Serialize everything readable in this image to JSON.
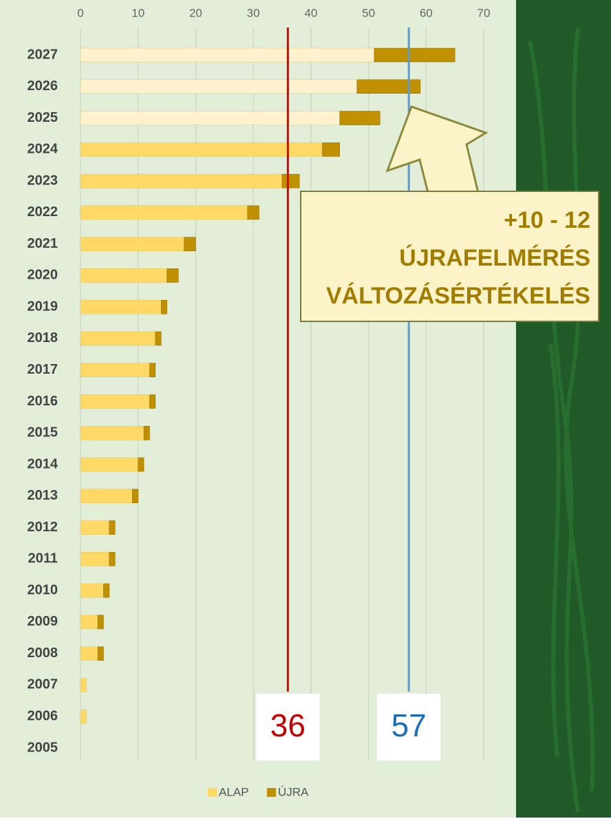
{
  "chart_data": {
    "type": "bar",
    "orientation": "horizontal",
    "stacked": true,
    "categories": [
      "2027",
      "2026",
      "2025",
      "2024",
      "2023",
      "2022",
      "2021",
      "2020",
      "2019",
      "2018",
      "2017",
      "2016",
      "2015",
      "2014",
      "2013",
      "2012",
      "2011",
      "2010",
      "2009",
      "2008",
      "2007",
      "2006",
      "2005"
    ],
    "series": [
      {
        "name": "ALAP",
        "color": "#ffd966",
        "point_colors": [
          "#fff2cc",
          "#fff2cc",
          "#fff2cc",
          "#ffd966",
          "#ffd966",
          "#ffd966",
          "#ffd966",
          "#ffd966",
          "#ffd966",
          "#ffd966",
          "#ffd966",
          "#ffd966",
          "#ffd966",
          "#ffd966",
          "#ffd966",
          "#ffd966",
          "#ffd966",
          "#ffd966",
          "#ffd966",
          "#ffd966",
          "#ffd966",
          "#ffd966",
          "#ffd966"
        ],
        "values": [
          51,
          48,
          45,
          42,
          35,
          29,
          18,
          15,
          14,
          13,
          12,
          12,
          11,
          10,
          9,
          5,
          5,
          4,
          3,
          3,
          1,
          1,
          0
        ]
      },
      {
        "name": "ÚJRA",
        "color": "#bf9000",
        "values": [
          14,
          11,
          7,
          3,
          3,
          2,
          2,
          2,
          1,
          1,
          1,
          1,
          1,
          1,
          1,
          1,
          1,
          1,
          1,
          1,
          0,
          0,
          0
        ]
      }
    ],
    "xlim": [
      0,
      70
    ],
    "xticks": [
      0,
      10,
      20,
      30,
      40,
      50,
      60,
      70
    ],
    "grid": true,
    "reference_lines": [
      {
        "value": 36,
        "color": "#e00000"
      },
      {
        "value": 57,
        "color": "#5b9bd5"
      }
    ],
    "annotation": {
      "lines": [
        "+10 - 12",
        "ÚJRAFELMÉRÉS",
        "VÁLTOZÁSÉRTÉKELÉS"
      ]
    },
    "legend": "bottom"
  }
}
